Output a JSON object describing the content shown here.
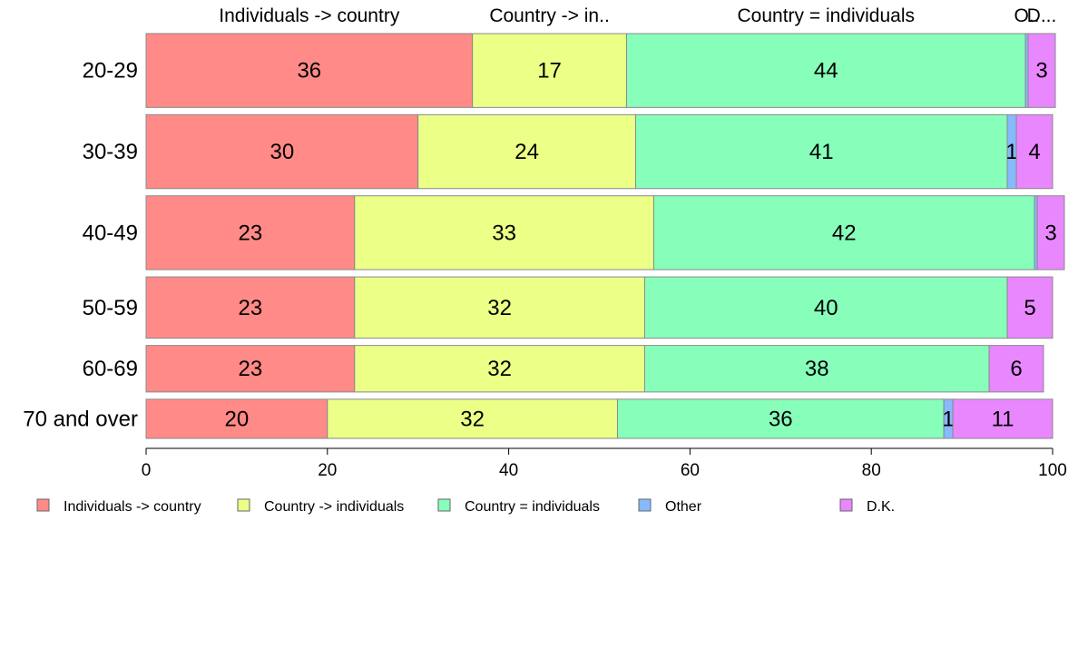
{
  "chart_data": {
    "type": "bar",
    "orientation": "horizontal",
    "stacked": true,
    "categories": [
      "20-29",
      "30-39",
      "40-49",
      "50-59",
      "60-69",
      "70 and over"
    ],
    "series": [
      {
        "name": "Individuals -> country",
        "color": "#ff8a87",
        "values": [
          36,
          30,
          23,
          23,
          23,
          20
        ]
      },
      {
        "name": "Country -> individuals",
        "color": "#ecff87",
        "values": [
          17,
          24,
          33,
          32,
          32,
          32
        ]
      },
      {
        "name": "Country = individuals",
        "color": "#87ffbb",
        "values": [
          44,
          41,
          42,
          40,
          38,
          36
        ]
      },
      {
        "name": "Other",
        "color": "#87b9ff",
        "values": [
          0.3,
          1,
          0.3,
          0,
          0,
          1
        ]
      },
      {
        "name": "D.K.",
        "color": "#e987ff",
        "values": [
          3,
          4,
          3,
          5,
          6,
          11
        ]
      }
    ],
    "segment_labels": [
      [
        "36",
        "17",
        "44",
        "",
        "3"
      ],
      [
        "30",
        "24",
        "41",
        "1",
        "4"
      ],
      [
        "23",
        "33",
        "42",
        "",
        "3"
      ],
      [
        "23",
        "32",
        "40",
        "",
        "5"
      ],
      [
        "23",
        "32",
        "38",
        "",
        "6"
      ],
      [
        "20",
        "32",
        "36",
        "1",
        "11"
      ]
    ],
    "row_weights": [
      1.0,
      1.0,
      1.0,
      0.83,
      0.63,
      0.53
    ],
    "top_labels": [
      "Individuals -> country",
      "Country -> in..",
      "Country = individuals",
      "O..",
      "D..."
    ],
    "xlim": [
      0,
      100
    ],
    "xticks": [
      0,
      20,
      40,
      60,
      80,
      100
    ],
    "legend_position": "bottom",
    "grid": false
  }
}
